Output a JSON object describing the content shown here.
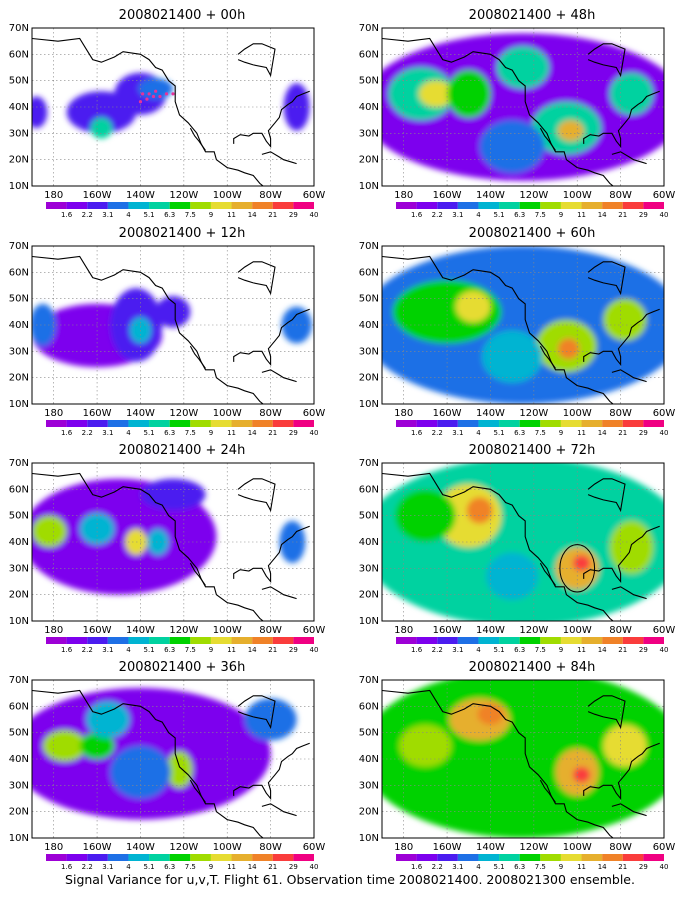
{
  "caption": "Signal Variance for u,v,T. Flight 61. Observation time 2008021400. 2008021300 ensemble.",
  "colors": {
    "levels": [
      "#9d00d6",
      "#7d00ee",
      "#4b1cf0",
      "#1e70e6",
      "#00b4d2",
      "#00d2a0",
      "#00d200",
      "#a0dc00",
      "#e6dc32",
      "#e6af2d",
      "#f08228",
      "#fa3c3c",
      "#f00082"
    ],
    "land_outline": "#000000",
    "grid": "#888888",
    "dropsonde_marker": "#e6329b",
    "ring": "#000000"
  },
  "chart_data": [
    {
      "type": "heatmap",
      "title": "2008021400 + 00h",
      "x_ticks": [
        "180",
        "160W",
        "140W",
        "120W",
        "100W",
        "80W",
        "60W"
      ],
      "y_ticks": [
        "10N",
        "20N",
        "30N",
        "40N",
        "50N",
        "60N",
        "70N"
      ],
      "xlim": [
        -190,
        -60
      ],
      "ylim": [
        10,
        70
      ],
      "grid": true,
      "colorbar_labels": [
        "1.6",
        "2.2",
        "3.1",
        "4",
        "5.1",
        "6.3",
        "7.5",
        "9",
        "11",
        "14",
        "21",
        "29",
        "40"
      ],
      "blobs": [
        {
          "lon": -158,
          "lat": 38,
          "value": 2,
          "rx": 16,
          "ry": 8
        },
        {
          "lon": -158,
          "lat": 32,
          "value": 5,
          "rx": 5,
          "ry": 4
        },
        {
          "lon": -140,
          "lat": 45,
          "value": 2,
          "rx": 12,
          "ry": 8
        },
        {
          "lon": -133,
          "lat": 47,
          "value": 3,
          "rx": 8,
          "ry": 4
        },
        {
          "lon": -188,
          "lat": 38,
          "value": 2,
          "rx": 5,
          "ry": 6
        },
        {
          "lon": -68,
          "lat": 40,
          "value": 2,
          "rx": 6,
          "ry": 9
        }
      ],
      "dropsondes": [
        [
          -140,
          42
        ],
        [
          -137,
          43
        ],
        [
          -134,
          44
        ],
        [
          -131,
          44
        ],
        [
          -128,
          45
        ],
        [
          -125,
          45
        ],
        [
          -139,
          45
        ],
        [
          -136,
          45
        ],
        [
          -133,
          46
        ]
      ]
    },
    {
      "type": "heatmap",
      "title": "2008021400 + 48h",
      "x_ticks": [
        "180",
        "160W",
        "140W",
        "120W",
        "100W",
        "80W",
        "60W"
      ],
      "y_ticks": [
        "10N",
        "20N",
        "30N",
        "40N",
        "50N",
        "60N",
        "70N"
      ],
      "xlim": [
        -190,
        -60
      ],
      "ylim": [
        10,
        70
      ],
      "grid": true,
      "colorbar_labels": [
        "1.6",
        "2.2",
        "3.1",
        "4",
        "5.1",
        "6.3",
        "7.5",
        "9",
        "11",
        "14",
        "21",
        "29",
        "40"
      ],
      "blobs": [
        {
          "lon": -125,
          "lat": 40,
          "value": 1,
          "rx": 75,
          "ry": 28
        },
        {
          "lon": -172,
          "lat": 45,
          "value": 5,
          "rx": 15,
          "ry": 10
        },
        {
          "lon": -165,
          "lat": 45,
          "value": 8,
          "rx": 8,
          "ry": 5
        },
        {
          "lon": -150,
          "lat": 45,
          "value": 6,
          "rx": 10,
          "ry": 9
        },
        {
          "lon": -125,
          "lat": 55,
          "value": 5,
          "rx": 12,
          "ry": 8
        },
        {
          "lon": -105,
          "lat": 32,
          "value": 5,
          "rx": 16,
          "ry": 10
        },
        {
          "lon": -103,
          "lat": 31,
          "value": 9,
          "rx": 6,
          "ry": 4
        },
        {
          "lon": -75,
          "lat": 45,
          "value": 5,
          "rx": 10,
          "ry": 8
        },
        {
          "lon": -130,
          "lat": 25,
          "value": 3,
          "rx": 15,
          "ry": 10
        }
      ]
    },
    {
      "type": "heatmap",
      "title": "2008021400 + 12h",
      "x_ticks": [
        "180",
        "160W",
        "140W",
        "120W",
        "100W",
        "80W",
        "60W"
      ],
      "y_ticks": [
        "10N",
        "20N",
        "30N",
        "40N",
        "50N",
        "60N",
        "70N"
      ],
      "xlim": [
        -190,
        -60
      ],
      "ylim": [
        10,
        70
      ],
      "grid": true,
      "colorbar_labels": [
        "1.6",
        "2.2",
        "3.1",
        "4",
        "5.1",
        "6.3",
        "7.5",
        "9",
        "11",
        "14",
        "21",
        "29",
        "40"
      ],
      "blobs": [
        {
          "lon": -160,
          "lat": 36,
          "value": 1,
          "rx": 30,
          "ry": 12
        },
        {
          "lon": -142,
          "lat": 40,
          "value": 2,
          "rx": 12,
          "ry": 14
        },
        {
          "lon": -185,
          "lat": 40,
          "value": 3,
          "rx": 6,
          "ry": 8
        },
        {
          "lon": -140,
          "lat": 38,
          "value": 4,
          "rx": 5,
          "ry": 5
        },
        {
          "lon": -125,
          "lat": 45,
          "value": 2,
          "rx": 8,
          "ry": 6
        },
        {
          "lon": -68,
          "lat": 40,
          "value": 3,
          "rx": 7,
          "ry": 7
        }
      ]
    },
    {
      "type": "heatmap",
      "title": "2008021400 + 60h",
      "x_ticks": [
        "180",
        "160W",
        "140W",
        "120W",
        "100W",
        "80W",
        "60W"
      ],
      "y_ticks": [
        "10N",
        "20N",
        "30N",
        "40N",
        "50N",
        "60N",
        "70N"
      ],
      "xlim": [
        -190,
        -60
      ],
      "ylim": [
        10,
        70
      ],
      "grid": true,
      "colorbar_labels": [
        "1.6",
        "2.2",
        "3.1",
        "4",
        "5.1",
        "6.3",
        "7.5",
        "9",
        "11",
        "14",
        "21",
        "29",
        "40"
      ],
      "blobs": [
        {
          "lon": -125,
          "lat": 40,
          "value": 3,
          "rx": 75,
          "ry": 30
        },
        {
          "lon": -160,
          "lat": 45,
          "value": 6,
          "rx": 25,
          "ry": 12
        },
        {
          "lon": -148,
          "lat": 47,
          "value": 8,
          "rx": 8,
          "ry": 6
        },
        {
          "lon": -105,
          "lat": 32,
          "value": 7,
          "rx": 14,
          "ry": 10
        },
        {
          "lon": -104,
          "lat": 31,
          "value": 10,
          "rx": 5,
          "ry": 4
        },
        {
          "lon": -78,
          "lat": 42,
          "value": 7,
          "rx": 10,
          "ry": 8
        },
        {
          "lon": -130,
          "lat": 28,
          "value": 4,
          "rx": 14,
          "ry": 10
        }
      ]
    },
    {
      "type": "heatmap",
      "title": "2008021400 + 24h",
      "x_ticks": [
        "180",
        "160W",
        "140W",
        "120W",
        "100W",
        "80W",
        "60W"
      ],
      "y_ticks": [
        "10N",
        "20N",
        "30N",
        "40N",
        "50N",
        "60N",
        "70N"
      ],
      "xlim": [
        -190,
        -60
      ],
      "ylim": [
        10,
        70
      ],
      "grid": true,
      "colorbar_labels": [
        "1.6",
        "2.2",
        "3.1",
        "4",
        "5.1",
        "6.3",
        "7.5",
        "9",
        "11",
        "14",
        "21",
        "29",
        "40"
      ],
      "blobs": [
        {
          "lon": -150,
          "lat": 42,
          "value": 1,
          "rx": 45,
          "ry": 22
        },
        {
          "lon": -182,
          "lat": 44,
          "value": 7,
          "rx": 8,
          "ry": 6
        },
        {
          "lon": -160,
          "lat": 45,
          "value": 4,
          "rx": 8,
          "ry": 6
        },
        {
          "lon": -142,
          "lat": 40,
          "value": 8,
          "rx": 5,
          "ry": 5
        },
        {
          "lon": -132,
          "lat": 40,
          "value": 4,
          "rx": 5,
          "ry": 5
        },
        {
          "lon": -125,
          "lat": 58,
          "value": 2,
          "rx": 15,
          "ry": 6
        },
        {
          "lon": -70,
          "lat": 40,
          "value": 3,
          "rx": 6,
          "ry": 8
        }
      ]
    },
    {
      "type": "heatmap",
      "title": "2008021400 + 72h",
      "x_ticks": [
        "180",
        "160W",
        "140W",
        "120W",
        "100W",
        "80W",
        "60W"
      ],
      "y_ticks": [
        "10N",
        "20N",
        "30N",
        "40N",
        "50N",
        "60N",
        "70N"
      ],
      "xlim": [
        -190,
        -60
      ],
      "ylim": [
        10,
        70
      ],
      "grid": true,
      "colorbar_labels": [
        "1.6",
        "2.2",
        "3.1",
        "4",
        "5.1",
        "6.3",
        "7.5",
        "9",
        "11",
        "14",
        "21",
        "29",
        "40"
      ],
      "blobs": [
        {
          "lon": -125,
          "lat": 40,
          "value": 5,
          "rx": 75,
          "ry": 32
        },
        {
          "lon": -150,
          "lat": 50,
          "value": 8,
          "rx": 15,
          "ry": 12
        },
        {
          "lon": -145,
          "lat": 52,
          "value": 10,
          "rx": 6,
          "ry": 5
        },
        {
          "lon": -170,
          "lat": 50,
          "value": 6,
          "rx": 14,
          "ry": 10
        },
        {
          "lon": -100,
          "lat": 30,
          "value": 9,
          "rx": 10,
          "ry": 8
        },
        {
          "lon": -98,
          "lat": 32,
          "value": 11,
          "rx": 4,
          "ry": 3
        },
        {
          "lon": -75,
          "lat": 38,
          "value": 7,
          "rx": 10,
          "ry": 10
        },
        {
          "lon": -130,
          "lat": 27,
          "value": 4,
          "rx": 12,
          "ry": 9
        }
      ],
      "ring": {
        "lon": -100,
        "lat": 30,
        "r_lon": 8,
        "r_lat": 9
      }
    },
    {
      "type": "heatmap",
      "title": "2008021400 + 36h",
      "x_ticks": [
        "180",
        "160W",
        "140W",
        "120W",
        "100W",
        "80W",
        "60W"
      ],
      "y_ticks": [
        "10N",
        "20N",
        "30N",
        "40N",
        "50N",
        "60N",
        "70N"
      ],
      "xlim": [
        -190,
        -60
      ],
      "ylim": [
        10,
        70
      ],
      "grid": true,
      "colorbar_labels": [
        "1.6",
        "2.2",
        "3.1",
        "4",
        "5.1",
        "6.3",
        "7.5",
        "9",
        "11",
        "14",
        "21",
        "29",
        "40"
      ],
      "blobs": [
        {
          "lon": -140,
          "lat": 42,
          "value": 1,
          "rx": 60,
          "ry": 25
        },
        {
          "lon": -175,
          "lat": 45,
          "value": 7,
          "rx": 10,
          "ry": 6
        },
        {
          "lon": -160,
          "lat": 45,
          "value": 6,
          "rx": 8,
          "ry": 5
        },
        {
          "lon": -155,
          "lat": 55,
          "value": 4,
          "rx": 10,
          "ry": 7
        },
        {
          "lon": -122,
          "lat": 36,
          "value": 7,
          "rx": 6,
          "ry": 7
        },
        {
          "lon": -140,
          "lat": 35,
          "value": 3,
          "rx": 14,
          "ry": 10
        },
        {
          "lon": -80,
          "lat": 55,
          "value": 3,
          "rx": 12,
          "ry": 8
        }
      ]
    },
    {
      "type": "heatmap",
      "title": "2008021400 + 84h",
      "x_ticks": [
        "180",
        "160W",
        "140W",
        "120W",
        "100W",
        "80W",
        "60W"
      ],
      "y_ticks": [
        "10N",
        "20N",
        "30N",
        "40N",
        "50N",
        "60N",
        "70N"
      ],
      "xlim": [
        -190,
        -60
      ],
      "ylim": [
        10,
        70
      ],
      "grid": true,
      "colorbar_labels": [
        "1.6",
        "2.2",
        "3.1",
        "4",
        "5.1",
        "6.3",
        "7.5",
        "9",
        "11",
        "14",
        "21",
        "29",
        "40"
      ],
      "blobs": [
        {
          "lon": -125,
          "lat": 42,
          "value": 6,
          "rx": 75,
          "ry": 32
        },
        {
          "lon": -145,
          "lat": 55,
          "value": 9,
          "rx": 14,
          "ry": 8
        },
        {
          "lon": -140,
          "lat": 57,
          "value": 10,
          "rx": 6,
          "ry": 4
        },
        {
          "lon": -100,
          "lat": 35,
          "value": 9,
          "rx": 10,
          "ry": 9
        },
        {
          "lon": -98,
          "lat": 34,
          "value": 11,
          "rx": 4,
          "ry": 3
        },
        {
          "lon": -170,
          "lat": 45,
          "value": 7,
          "rx": 12,
          "ry": 8
        },
        {
          "lon": -78,
          "lat": 45,
          "value": 8,
          "rx": 10,
          "ry": 8
        }
      ]
    }
  ]
}
